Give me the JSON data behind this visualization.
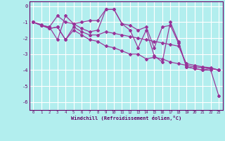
{
  "background_color": "#b2eeee",
  "grid_color": "#ffffff",
  "line_color": "#993399",
  "ylim": [
    -6.5,
    0.3
  ],
  "xlim": [
    -0.5,
    23.5
  ],
  "yticks": [
    0,
    -1,
    -2,
    -3,
    -4,
    -5,
    -6
  ],
  "xticks": [
    0,
    1,
    2,
    3,
    4,
    5,
    6,
    7,
    8,
    9,
    10,
    11,
    12,
    13,
    14,
    15,
    16,
    17,
    18,
    19,
    20,
    21,
    22,
    23
  ],
  "xlabel": "Windchill (Refroidissement éolien,°C)",
  "series": [
    {
      "x": [
        0,
        1,
        2,
        3,
        4,
        5,
        6,
        7,
        8,
        9,
        10,
        11,
        12,
        13,
        14,
        15,
        16,
        17,
        18,
        19,
        20,
        21,
        22,
        23
      ],
      "y": [
        -1.0,
        -1.2,
        -1.3,
        -0.6,
        -1.0,
        -1.1,
        -1.0,
        -0.9,
        -0.9,
        -0.2,
        -0.2,
        -1.1,
        -1.2,
        -1.5,
        -1.3,
        -2.6,
        -1.3,
        -1.2,
        -2.3,
        -3.8,
        -3.9,
        -4.0,
        -3.9,
        -4.0
      ]
    },
    {
      "x": [
        0,
        1,
        2,
        3,
        4,
        5,
        6,
        7,
        8,
        9,
        10,
        11,
        12,
        13,
        14,
        15,
        16,
        17,
        18,
        19,
        20,
        21,
        22,
        23
      ],
      "y": [
        -1.0,
        -1.2,
        -1.3,
        -2.1,
        -0.6,
        -1.1,
        -1.4,
        -1.6,
        -1.5,
        -0.2,
        -0.2,
        -1.1,
        -1.5,
        -2.6,
        -1.5,
        -3.1,
        -3.5,
        -1.0,
        -2.2,
        -3.8,
        -3.9,
        -4.0,
        -4.0,
        -5.6
      ]
    },
    {
      "x": [
        0,
        1,
        2,
        3,
        4,
        5,
        6,
        7,
        8,
        9,
        10,
        11,
        12,
        13,
        14,
        15,
        16,
        17,
        18,
        19,
        20,
        21,
        22,
        23
      ],
      "y": [
        -1.0,
        -1.2,
        -1.4,
        -1.3,
        -2.1,
        -1.3,
        -1.6,
        -1.8,
        -1.8,
        -1.6,
        -1.7,
        -1.8,
        -1.9,
        -2.0,
        -2.1,
        -2.2,
        -2.3,
        -2.4,
        -2.5,
        -3.6,
        -3.7,
        -3.8,
        -3.85,
        -4.0
      ]
    },
    {
      "x": [
        0,
        1,
        2,
        3,
        4,
        5,
        6,
        7,
        8,
        9,
        10,
        11,
        12,
        13,
        14,
        15,
        16,
        17,
        18,
        19,
        20,
        21,
        22,
        23
      ],
      "y": [
        -1.0,
        -1.15,
        -1.4,
        -1.3,
        -2.1,
        -1.5,
        -1.8,
        -2.1,
        -2.2,
        -2.5,
        -2.6,
        -2.8,
        -3.0,
        -3.0,
        -3.3,
        -3.2,
        -3.3,
        -3.5,
        -3.6,
        -3.7,
        -3.8,
        -3.85,
        -3.9,
        -4.0
      ]
    }
  ]
}
